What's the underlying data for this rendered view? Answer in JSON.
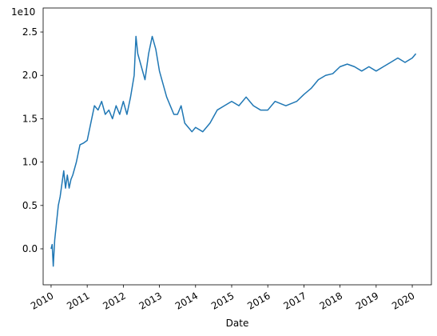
{
  "chart_data": {
    "type": "line",
    "x_label": "Date",
    "y_offset_label": "1e10",
    "xlim": [
      2009.78,
      2020.53
    ],
    "xticks": [
      2010,
      2011,
      2012,
      2013,
      2014,
      2015,
      2016,
      2017,
      2018,
      2019,
      2020
    ],
    "ylim": [
      -0.415,
      2.777
    ],
    "yticks": [
      {
        "value": 0,
        "label": "0.0"
      },
      0.5,
      {
        "value": 1,
        "label": "1.0"
      },
      1.5,
      {
        "value": 2,
        "label": "2.0"
      },
      2.5
    ],
    "grid": false,
    "x": [
      2010.0,
      2010.03,
      2010.06,
      2010.1,
      2010.15,
      2010.2,
      2010.25,
      2010.3,
      2010.35,
      2010.4,
      2010.45,
      2010.5,
      2010.55,
      2010.6,
      2010.7,
      2010.8,
      2010.9,
      2011.0,
      2011.1,
      2011.2,
      2011.3,
      2011.4,
      2011.5,
      2011.6,
      2011.7,
      2011.8,
      2011.9,
      2012.0,
      2012.1,
      2012.2,
      2012.3,
      2012.35,
      2012.4,
      2012.5,
      2012.6,
      2012.7,
      2012.8,
      2012.9,
      2013.0,
      2013.1,
      2013.2,
      2013.3,
      2013.4,
      2013.5,
      2013.6,
      2013.7,
      2013.8,
      2013.9,
      2014.0,
      2014.2,
      2014.4,
      2014.6,
      2014.8,
      2015.0,
      2015.2,
      2015.4,
      2015.6,
      2015.8,
      2016.0,
      2016.2,
      2016.5,
      2016.8,
      2017.0,
      2017.2,
      2017.4,
      2017.6,
      2017.8,
      2018.0,
      2018.2,
      2018.4,
      2018.6,
      2018.8,
      2019.0,
      2019.2,
      2019.4,
      2019.6,
      2019.8,
      2020.0,
      2020.1
    ],
    "series": [
      {
        "color": "#1f77b4",
        "values": [
          0.0,
          0.05,
          -0.2,
          0.1,
          0.3,
          0.5,
          0.6,
          0.75,
          0.9,
          0.7,
          0.85,
          0.7,
          0.8,
          0.85,
          1.0,
          1.2,
          1.22,
          1.25,
          1.45,
          1.65,
          1.6,
          1.7,
          1.55,
          1.6,
          1.5,
          1.65,
          1.55,
          1.7,
          1.55,
          1.75,
          2.0,
          2.45,
          2.25,
          2.1,
          1.95,
          2.25,
          2.45,
          2.3,
          2.05,
          1.9,
          1.75,
          1.65,
          1.55,
          1.55,
          1.65,
          1.45,
          1.4,
          1.35,
          1.4,
          1.35,
          1.45,
          1.6,
          1.65,
          1.7,
          1.65,
          1.75,
          1.65,
          1.6,
          1.6,
          1.7,
          1.65,
          1.7,
          1.78,
          1.85,
          1.95,
          2.0,
          2.02,
          2.1,
          2.13,
          2.1,
          2.05,
          2.1,
          2.05,
          2.1,
          2.15,
          2.2,
          2.15,
          2.2,
          2.25
        ]
      }
    ]
  }
}
